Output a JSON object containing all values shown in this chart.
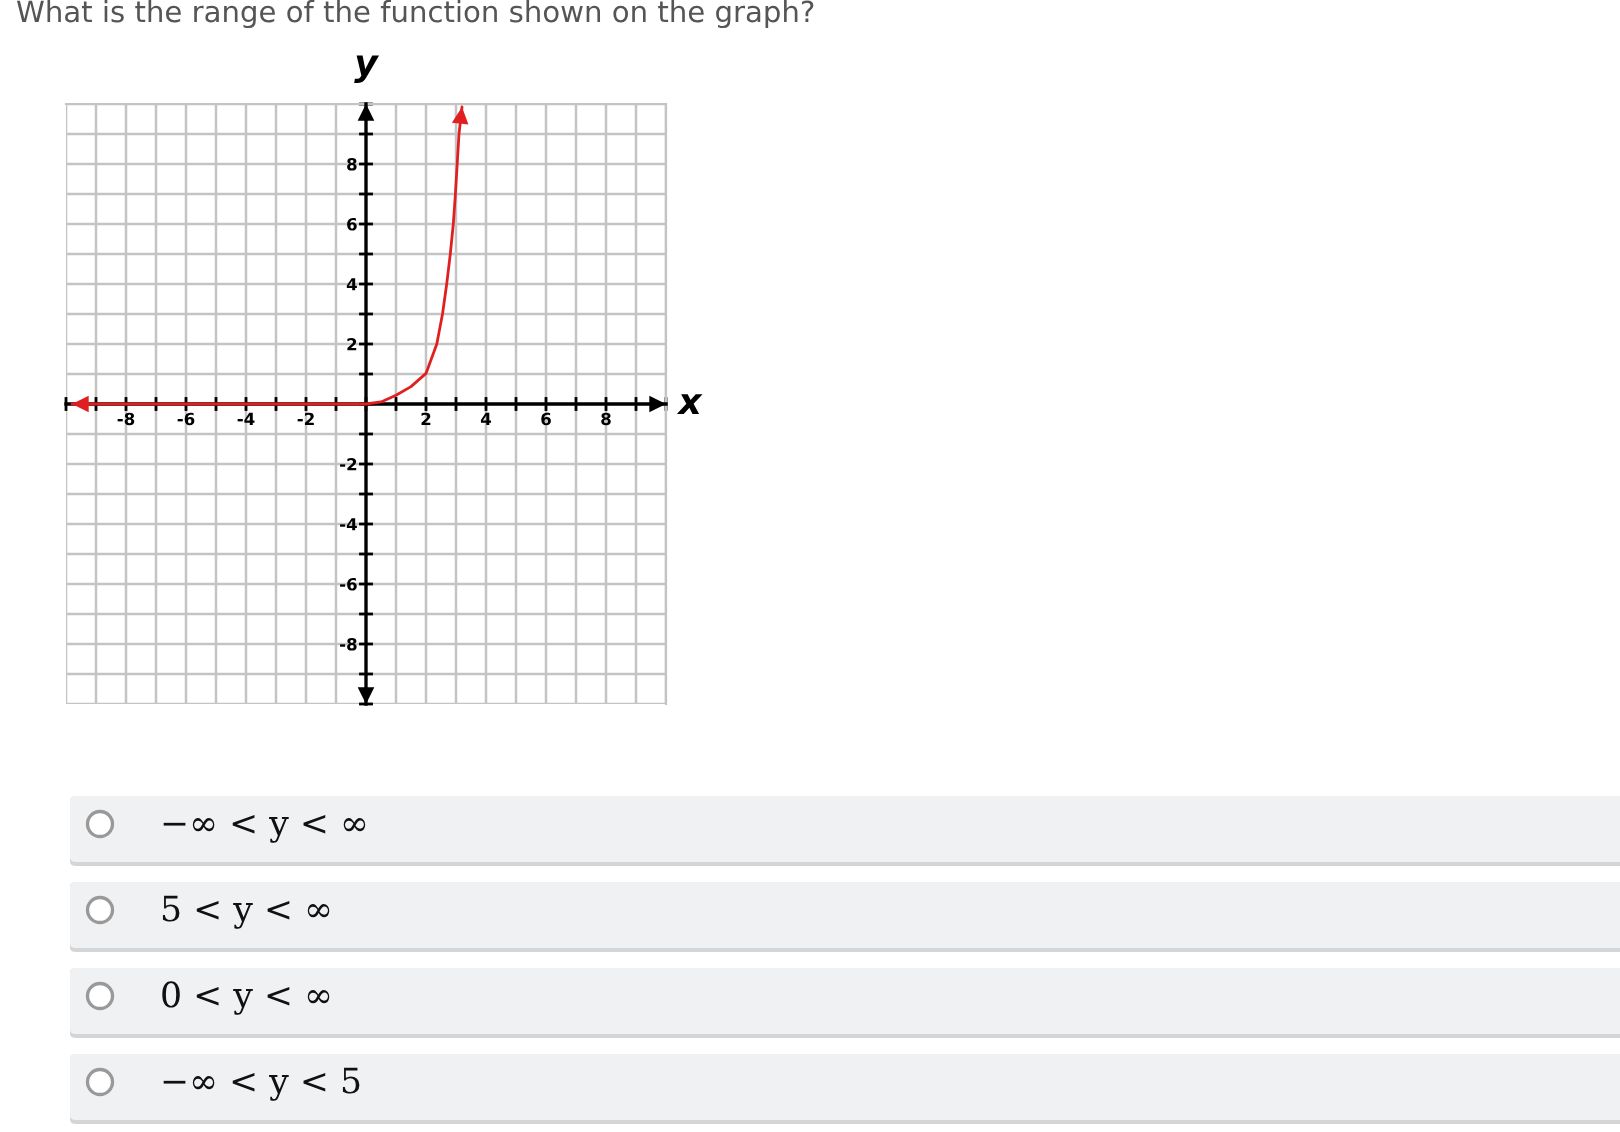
{
  "chart_data": {
    "type": "line",
    "title": "What is the range of the function shown on the graph?",
    "xlabel": "x",
    "ylabel": "y",
    "x": [
      -9.8,
      0,
      0.5,
      1,
      1.5,
      2,
      2.36,
      2.55,
      2.69,
      2.81,
      2.91,
      2.98,
      3.04,
      3.1,
      3.2
    ],
    "series": [
      {
        "color": "#e02020",
        "values": [
          0,
          0,
          0.07,
          0.29,
          0.58,
          1.02,
          2,
          3,
          4,
          5,
          6,
          7,
          8,
          9,
          9.9
        ]
      }
    ],
    "xlim": [
      -10,
      10
    ],
    "ylim": [
      -10,
      10
    ],
    "xticks": [
      {
        "value": -10,
        "label": null
      },
      {
        "value": -9,
        "label": null
      },
      -8,
      {
        "value": -7,
        "label": null
      },
      -6,
      {
        "value": -5,
        "label": null
      },
      -4,
      {
        "value": -3,
        "label": null
      },
      -2,
      {
        "value": -1,
        "label": null
      },
      {
        "value": 0,
        "label": null
      },
      {
        "value": 1,
        "label": null
      },
      2,
      {
        "value": 3,
        "label": null
      },
      4,
      {
        "value": 5,
        "label": null
      },
      6,
      {
        "value": 7,
        "label": null
      },
      8,
      {
        "value": 9,
        "label": null
      },
      {
        "value": 10,
        "label": null
      }
    ],
    "yticks": [
      {
        "value": -10,
        "label": null
      },
      {
        "value": -9,
        "label": null
      },
      -8,
      {
        "value": -7,
        "label": null
      },
      -6,
      {
        "value": -5,
        "label": null
      },
      -4,
      {
        "value": -3,
        "label": null
      },
      -2,
      {
        "value": -1,
        "label": null
      },
      {
        "value": 0,
        "label": null
      },
      {
        "value": 1,
        "label": null
      },
      2,
      {
        "value": 3,
        "label": null
      },
      4,
      {
        "value": 5,
        "label": null
      },
      6,
      {
        "value": 7,
        "label": null
      },
      8,
      {
        "value": 9,
        "label": null
      },
      {
        "value": 10,
        "label": null
      }
    ],
    "grid": true,
    "annotations": [
      "−∞ < y < ∞",
      "5 < y < ∞",
      "0 < y < ∞",
      "−∞ < y < 5"
    ]
  }
}
